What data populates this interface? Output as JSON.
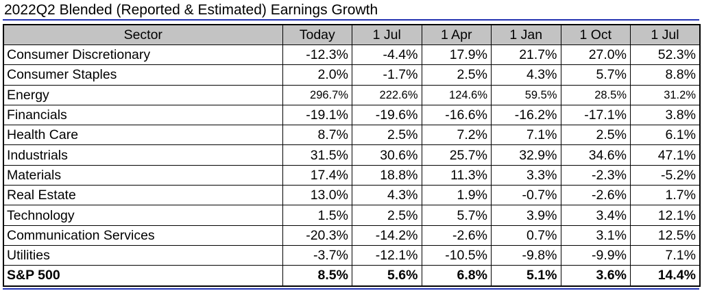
{
  "title": "2022Q2 Blended (Reported & Estimated) Earnings Growth",
  "columns": [
    "Sector",
    "Today",
    "1 Jul",
    "1 Apr",
    "1 Jan",
    "1 Oct",
    "1 Jul"
  ],
  "rows": [
    {
      "sector": "Consumer Discretionary",
      "values": [
        "-12.3%",
        "-4.4%",
        "17.9%",
        "21.7%",
        "27.0%",
        "52.3%"
      ]
    },
    {
      "sector": "Consumer Staples",
      "values": [
        "2.0%",
        "-1.7%",
        "2.5%",
        "4.3%",
        "5.7%",
        "8.8%"
      ]
    },
    {
      "sector": "Energy",
      "values": [
        "296.7%",
        "222.6%",
        "124.6%",
        "59.5%",
        "28.5%",
        "31.2%"
      ]
    },
    {
      "sector": "Financials",
      "values": [
        "-19.1%",
        "-19.6%",
        "-16.6%",
        "-16.2%",
        "-17.1%",
        "3.8%"
      ]
    },
    {
      "sector": "Health Care",
      "values": [
        "8.7%",
        "2.5%",
        "7.2%",
        "7.1%",
        "2.5%",
        "6.1%"
      ]
    },
    {
      "sector": "Industrials",
      "values": [
        "31.5%",
        "30.6%",
        "25.7%",
        "32.9%",
        "34.6%",
        "47.1%"
      ]
    },
    {
      "sector": "Materials",
      "values": [
        "17.4%",
        "18.8%",
        "11.3%",
        "3.3%",
        "-2.3%",
        "-5.2%"
      ]
    },
    {
      "sector": "Real Estate",
      "values": [
        "13.0%",
        "4.3%",
        "1.9%",
        "-0.7%",
        "-2.6%",
        "1.7%"
      ]
    },
    {
      "sector": "Technology",
      "values": [
        "1.5%",
        "2.5%",
        "5.7%",
        "3.9%",
        "3.4%",
        "12.1%"
      ]
    },
    {
      "sector": "Communication Services",
      "values": [
        "-20.3%",
        "-14.2%",
        "-2.6%",
        "0.7%",
        "3.1%",
        "12.5%"
      ]
    },
    {
      "sector": "Utilities",
      "values": [
        "-3.7%",
        "-12.1%",
        "-10.5%",
        "-9.8%",
        "-9.9%",
        "7.1%"
      ]
    }
  ],
  "total": {
    "sector": "S&P 500",
    "values": [
      "8.5%",
      "5.6%",
      "6.8%",
      "5.1%",
      "3.6%",
      "14.4%"
    ]
  },
  "colors": {
    "rule": "#1f2fb0",
    "header_bg": "#c3c3c3"
  }
}
